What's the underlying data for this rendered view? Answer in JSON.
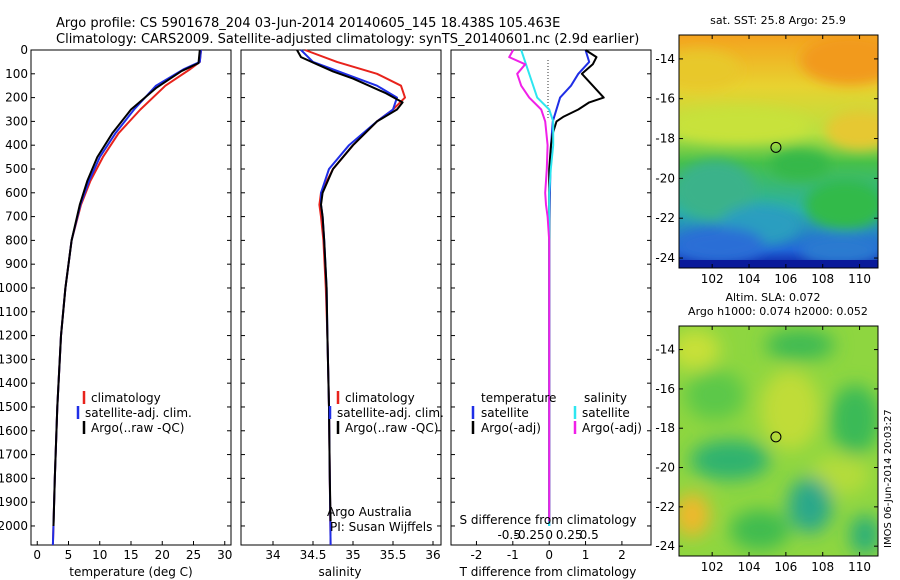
{
  "header": {
    "line1": "Argo profile: CS 5901678_204 03-Jun-2014 20140605_145 18.438S 105.463E",
    "line2": "Climatology: CARS2009. Satellite-adjusted climatology: synTS_20140601.nc (2.9d earlier)"
  },
  "colors": {
    "climatology": "#e8231c",
    "satellite": "#1f2ee6",
    "argo": "#000000",
    "satellite_diff": "#2ee6f0",
    "argo_diff": "#f020e8"
  },
  "chart_data": [
    {
      "type": "line",
      "title": "",
      "xlabel": "temperature (deg C)",
      "ylabel": "",
      "xlim": [
        -1,
        31
      ],
      "ylim": [
        2080,
        0
      ],
      "xticks": [
        0,
        5,
        10,
        15,
        20,
        25,
        30
      ],
      "yticks": [
        0,
        100,
        200,
        300,
        400,
        500,
        600,
        700,
        800,
        900,
        1000,
        1100,
        1200,
        1300,
        1400,
        1500,
        1600,
        1700,
        1800,
        1900,
        2000
      ],
      "legend": [
        "climatology",
        "satellite-adj. clim.",
        "Argo(..raw -QC)"
      ],
      "series": [
        {
          "name": "climatology",
          "depth": [
            0,
            50,
            80,
            150,
            250,
            350,
            450,
            550,
            650,
            800,
            1000,
            1200,
            1500,
            1800,
            2080
          ],
          "values": [
            26.2,
            26.0,
            24.5,
            20.5,
            16.5,
            13.0,
            10.5,
            8.5,
            7.0,
            5.5,
            4.5,
            3.8,
            3.2,
            2.8,
            2.5
          ]
        },
        {
          "name": "satellite-adj. clim.",
          "depth": [
            0,
            50,
            80,
            150,
            250,
            350,
            450,
            550,
            650,
            800,
            1000,
            1200,
            1500,
            1800,
            2080
          ],
          "values": [
            26.2,
            26.0,
            23.5,
            19.0,
            15.5,
            12.5,
            10.0,
            8.3,
            6.9,
            5.5,
            4.5,
            3.8,
            3.2,
            2.8,
            2.5
          ]
        },
        {
          "name": "Argo(..raw -QC)",
          "depth": [
            0,
            55,
            90,
            160,
            250,
            350,
            450,
            550,
            650,
            800,
            1000,
            1200,
            1500,
            1800,
            2000
          ],
          "values": [
            26.0,
            25.8,
            23.0,
            19.0,
            15.0,
            12.0,
            9.6,
            8.0,
            6.8,
            5.5,
            4.5,
            3.8,
            3.2,
            2.8,
            2.6
          ]
        }
      ]
    },
    {
      "type": "line",
      "title": "",
      "xlabel": "salinity",
      "ylabel": "",
      "xlim": [
        33.6,
        36.1
      ],
      "ylim": [
        2080,
        0
      ],
      "xticks": [
        34,
        34.5,
        35,
        35.5,
        36
      ],
      "legend": [
        "climatology",
        "satellite-adj. clim.",
        "Argo(..raw -QC)"
      ],
      "annotation": [
        "Argo Australia",
        "PI: Susan Wijffels"
      ],
      "series": [
        {
          "name": "climatology",
          "depth": [
            0,
            50,
            100,
            150,
            200,
            250,
            300,
            400,
            500,
            600,
            650,
            700,
            800,
            1000,
            1200,
            1500,
            1800,
            2080
          ],
          "values": [
            34.4,
            34.8,
            35.3,
            35.6,
            35.65,
            35.5,
            35.3,
            35.0,
            34.75,
            34.6,
            34.58,
            34.6,
            34.63,
            34.66,
            34.68,
            34.7,
            34.71,
            34.72
          ]
        },
        {
          "name": "satellite-adj. clim.",
          "depth": [
            0,
            50,
            100,
            150,
            200,
            250,
            300,
            400,
            500,
            600,
            650,
            700,
            800,
            1000,
            1200,
            1500,
            1800,
            2080
          ],
          "values": [
            34.35,
            34.5,
            34.9,
            35.3,
            35.55,
            35.5,
            35.3,
            34.95,
            34.7,
            34.6,
            34.6,
            34.62,
            34.64,
            34.67,
            34.68,
            34.7,
            34.71,
            34.72
          ]
        },
        {
          "name": "Argo(..raw -QC)",
          "depth": [
            0,
            30,
            60,
            90,
            120,
            150,
            180,
            220,
            250,
            270,
            300,
            400,
            500,
            600,
            650,
            700,
            800,
            1000,
            1200,
            1500,
            1800,
            1980
          ],
          "values": [
            34.3,
            34.35,
            34.55,
            34.75,
            35.0,
            35.2,
            35.4,
            35.62,
            35.55,
            35.45,
            35.3,
            35.0,
            34.75,
            34.62,
            34.6,
            34.62,
            34.64,
            34.67,
            34.68,
            34.7,
            34.71,
            34.72
          ]
        }
      ]
    },
    {
      "type": "line",
      "title": "",
      "xlabel": "T difference from climatology",
      "ylabel": "",
      "xlim_T": [
        -2.7,
        2.8
      ],
      "xticks_T": [
        -2,
        -1,
        0,
        1,
        2
      ],
      "top_axis_label": "S difference from climatology",
      "xticks_S": [
        "-0.5",
        "-0.25",
        "0",
        "0.25",
        "0.5"
      ],
      "ylim": [
        2080,
        0
      ],
      "legend_titles": [
        "temperature",
        "salinity"
      ],
      "legend": [
        "satellite",
        "Argo(-adj)",
        "satellite",
        "Argo(-adj)"
      ],
      "series": [
        {
          "name": "temperature satellite",
          "depth": [
            0,
            50,
            100,
            150,
            200,
            300,
            400,
            600,
            800,
            1000,
            1500,
            2000
          ],
          "values": [
            1.0,
            1.1,
            0.8,
            0.6,
            0.3,
            0.1,
            0.05,
            0.02,
            0.0,
            0.0,
            0.0,
            0.0
          ]
        },
        {
          "name": "temperature Argo(-adj)",
          "depth": [
            0,
            30,
            60,
            100,
            150,
            200,
            220,
            250,
            280,
            300,
            350,
            400,
            500,
            600,
            800,
            1000,
            1500,
            1980
          ],
          "values": [
            1.0,
            1.3,
            1.2,
            0.9,
            1.2,
            1.5,
            1.1,
            0.8,
            0.4,
            0.2,
            0.1,
            0.05,
            0.0,
            0.0,
            0.0,
            0.0,
            0.0,
            0.0
          ]
        },
        {
          "name": "salinity satellite",
          "depth": [
            0,
            50,
            100,
            200,
            250,
            300,
            400,
            500,
            600,
            700,
            800,
            1000,
            1500,
            2000
          ],
          "values": [
            -0.35,
            -0.3,
            -0.25,
            -0.15,
            0.0,
            0.05,
            0.05,
            0.02,
            0.0,
            0.0,
            0.0,
            0.0,
            0.0,
            0.0
          ]
        },
        {
          "name": "salinity Argo(-adj)",
          "depth": [
            0,
            30,
            60,
            100,
            150,
            200,
            250,
            300,
            400,
            500,
            600,
            650,
            700,
            800,
            1000,
            1500,
            1980
          ],
          "values": [
            -0.45,
            -0.5,
            -0.3,
            -0.4,
            -0.35,
            -0.25,
            -0.1,
            -0.05,
            -0.02,
            -0.03,
            -0.05,
            -0.04,
            -0.02,
            0.0,
            0.0,
            0.0,
            0.0
          ]
        }
      ]
    },
    {
      "type": "heatmap",
      "title": "sat. SST: 25.8  Argo: 25.9",
      "xticks": [
        102,
        104,
        106,
        108,
        110
      ],
      "yticks": [
        -14,
        -16,
        -18,
        -20,
        -22,
        -24
      ],
      "xlim": [
        100.2,
        111
      ],
      "ylim": [
        -24.5,
        -12.8
      ],
      "marker": {
        "lon": 105.46,
        "lat": -18.44
      }
    },
    {
      "type": "heatmap",
      "title_line1": "Altim. SLA: 0.072",
      "title_line2": "Argo h1000: 0.074  h2000: 0.052",
      "xticks": [
        102,
        104,
        106,
        108,
        110
      ],
      "yticks": [
        -14,
        -16,
        -18,
        -20,
        -22,
        -24
      ],
      "xlim": [
        100.2,
        111
      ],
      "ylim": [
        -24.5,
        -12.8
      ],
      "marker": {
        "lon": 105.46,
        "lat": -18.44
      }
    }
  ],
  "side_note": "IMOS 06-Jun-2014 20:03:27"
}
